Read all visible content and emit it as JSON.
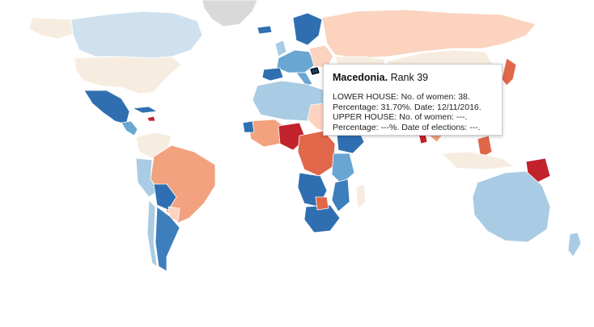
{
  "tooltip": {
    "country": "Macedonia.",
    "rank": "Rank 39",
    "lines": [
      "LOWER HOUSE: No. of women: 38.",
      "Percentage: 31.70%. Date: 12/11/2016.",
      "UPPER HOUSE: No. of women: ---.",
      "Percentage: ---%. Date of elections: ---."
    ]
  },
  "legend_colors": {
    "dark_blue": "#2f6fb1",
    "mid_blue": "#6aa6d2",
    "light_blue": "#a9cce4",
    "pale_blue": "#cfe1ef",
    "neutral": "#f7ece0",
    "pale_red": "#fbd3bf",
    "light_red": "#f2a27f",
    "mid_red": "#e0674a",
    "dark_red": "#c2222c",
    "no_data": "#d9d9d9"
  }
}
